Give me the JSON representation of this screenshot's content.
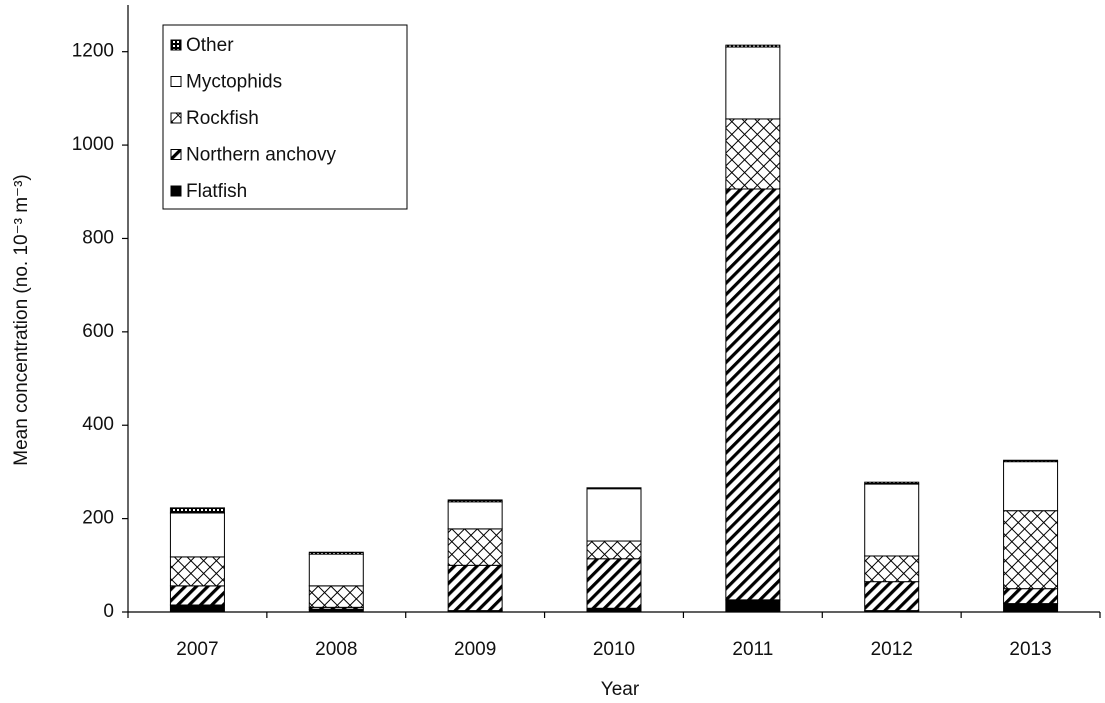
{
  "chart_data": {
    "type": "stacked_bar",
    "x_label": "Year",
    "y_label": "Mean concentration (no. 10⁻³ m⁻³)",
    "categories": [
      "2007",
      "2008",
      "2009",
      "2010",
      "2011",
      "2012",
      "2013"
    ],
    "series": [
      {
        "name": "Flatfish",
        "color": "#000000",
        "pattern": "solid",
        "values": [
          15,
          6,
          3,
          8,
          26,
          3,
          18
        ]
      },
      {
        "name": "Northern anchovy",
        "color": "#000000",
        "pattern": "diagonal",
        "values": [
          41,
          4,
          97,
          106,
          880,
          62,
          32
        ]
      },
      {
        "name": "Rockfish",
        "color": "#000000",
        "pattern": "crosshatch",
        "values": [
          62,
          46,
          78,
          38,
          150,
          55,
          167
        ]
      },
      {
        "name": "Myctophids",
        "color": "#000000",
        "pattern": "none",
        "values": [
          94,
          68,
          58,
          112,
          154,
          154,
          105
        ]
      },
      {
        "name": "Other",
        "color": "#000000",
        "pattern": "dots",
        "values": [
          11,
          4,
          4,
          2,
          4,
          4,
          3
        ]
      }
    ],
    "ylim": [
      0,
      1300
    ],
    "yticks": [
      0,
      200,
      400,
      600,
      800,
      1000,
      1200
    ],
    "grid": false,
    "legend": "upper left"
  }
}
